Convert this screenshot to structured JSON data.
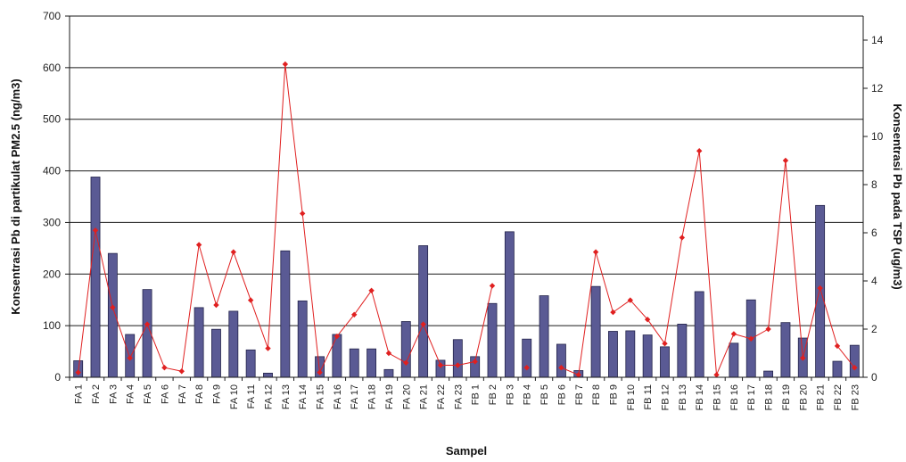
{
  "chart_data": {
    "type": "bar",
    "xlabel": "Sampel",
    "ylabel": "Konsentrasi Pb di partikulat PM2.5 (ng/m3)",
    "y2label": "Konsentrasi Pb pada TSP (ug/m3)",
    "ylim": [
      0,
      700
    ],
    "y2lim": [
      0,
      15
    ],
    "yticks": [
      0,
      100,
      200,
      300,
      400,
      500,
      600,
      700
    ],
    "y2ticks": [
      0,
      2,
      4,
      6,
      8,
      10,
      12,
      14
    ],
    "grid": true,
    "categories": [
      "FA 1",
      "FA 2",
      "FA 3",
      "FA 4",
      "FA 5",
      "FA 6",
      "FA 7",
      "FA 8",
      "FA 9",
      "FA 10",
      "FA 11",
      "FA 12",
      "FA 13",
      "FA 14",
      "FA 15",
      "FA 16",
      "FA 17",
      "FA 18",
      "FA 19",
      "FA 20",
      "FA 21",
      "FA 22",
      "FA 23",
      "FB 1",
      "FB 2",
      "FB 3",
      "FB 4",
      "FB 5",
      "FB 6",
      "FB 7",
      "FB 8",
      "FB 9",
      "FB 10",
      "FB 11",
      "FB 12",
      "FB 13",
      "FB 14",
      "FB 15",
      "FB 16",
      "FB 17",
      "FB 18",
      "FB 19",
      "FB 20",
      "FB 21",
      "FB 22",
      "FB 23"
    ],
    "series": [
      {
        "kind": "bar",
        "axis": "left",
        "color": "#5a5a94",
        "values": [
          32,
          388,
          240,
          83,
          170,
          0,
          0,
          135,
          93,
          128,
          53,
          8,
          245,
          148,
          40,
          83,
          55,
          55,
          15,
          108,
          255,
          33,
          73,
          40,
          143,
          282,
          74,
          158,
          64,
          13,
          176,
          89,
          90,
          82,
          59,
          103,
          166,
          0,
          66,
          150,
          12,
          106,
          76,
          333,
          31,
          62
        ]
      },
      {
        "kind": "line",
        "axis": "right",
        "color": "#e02020",
        "values": [
          0.2,
          6.1,
          2.9,
          0.8,
          2.2,
          0.4,
          0.25,
          5.5,
          3.0,
          5.2,
          3.2,
          1.2,
          13.0,
          6.8,
          0.2,
          1.7,
          2.6,
          3.6,
          1.0,
          0.6,
          2.2,
          0.5,
          0.5,
          0.65,
          3.8,
          null,
          0.4,
          null,
          0.4,
          0.1,
          5.2,
          2.7,
          3.2,
          2.4,
          1.4,
          5.8,
          9.4,
          0.1,
          1.8,
          1.6,
          2.0,
          9.0,
          0.8,
          3.7,
          1.3,
          0.4
        ]
      }
    ]
  }
}
